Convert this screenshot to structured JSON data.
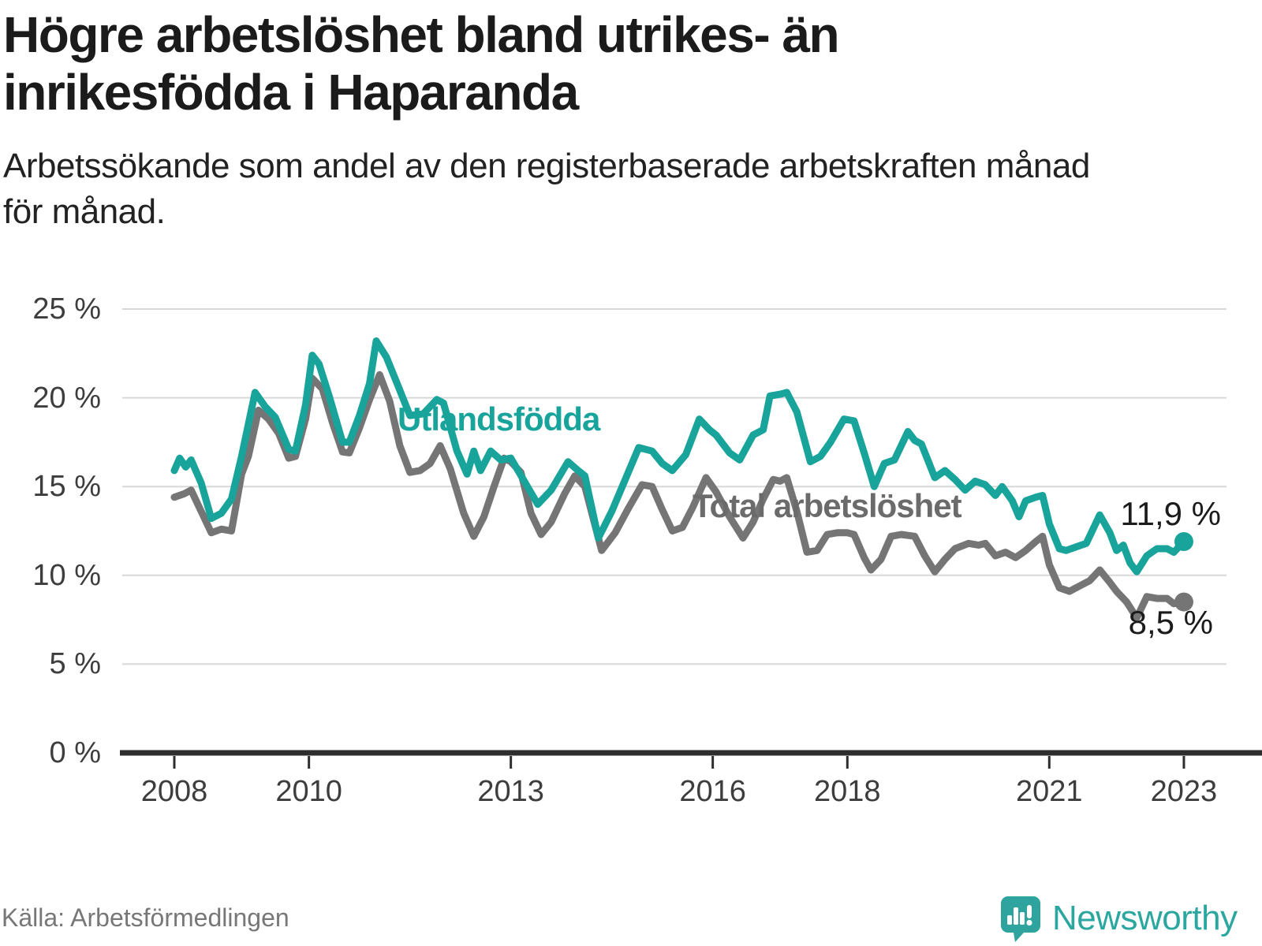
{
  "header": {
    "title_line1": "Högre arbetslöshet bland utrikes- än",
    "title_line2": "inrikesfödda i Haparanda",
    "subtitle_line1": "Arbetssökande som andel av den registerbaserade arbetskraften månad",
    "subtitle_line2": "för månad."
  },
  "footer": {
    "source": "Källa: Arbetsförmedlingen",
    "brand": "Newsworthy"
  },
  "colors": {
    "teal": "#18A39B",
    "gray": "#757575",
    "axis": "#2E2E2E",
    "grid": "#D8D8D8",
    "logo_teal": "#2FA39E"
  },
  "chart_data": {
    "type": "line",
    "title": "Högre arbetslöshet bland utrikes- än inrikesfödda i Haparanda",
    "subtitle": "Arbetssökande som andel av den registerbaserade arbetskraften månad för månad.",
    "xlabel": "",
    "ylabel": "",
    "ylim": [
      0,
      25
    ],
    "xlim": [
      2007.2,
      2024.2
    ],
    "grid": "horizontal",
    "legend_position": "inline-annotations",
    "y_ticks": [
      0,
      5,
      10,
      15,
      20,
      25
    ],
    "y_suffix": " %",
    "x_ticks": [
      2008,
      2010,
      2013,
      2016,
      2018,
      2021,
      2023
    ],
    "series": [
      {
        "name": "Total arbetslöshet",
        "color": "#757575",
        "end_label": "8,5 %",
        "end_value": 8.5,
        "points": [
          [
            2008.0,
            14.4
          ],
          [
            2008.15,
            14.6
          ],
          [
            2008.25,
            14.8
          ],
          [
            2008.4,
            13.6
          ],
          [
            2008.55,
            12.4
          ],
          [
            2008.7,
            12.6
          ],
          [
            2008.85,
            12.5
          ],
          [
            2009.0,
            15.7
          ],
          [
            2009.1,
            16.7
          ],
          [
            2009.25,
            19.3
          ],
          [
            2009.4,
            18.8
          ],
          [
            2009.55,
            18.0
          ],
          [
            2009.7,
            16.6
          ],
          [
            2009.8,
            16.7
          ],
          [
            2009.95,
            18.8
          ],
          [
            2010.05,
            21.1
          ],
          [
            2010.2,
            20.5
          ],
          [
            2010.35,
            18.6
          ],
          [
            2010.5,
            16.95
          ],
          [
            2010.6,
            16.9
          ],
          [
            2010.75,
            18.3
          ],
          [
            2010.9,
            19.9
          ],
          [
            2011.05,
            21.3
          ],
          [
            2011.2,
            19.8
          ],
          [
            2011.35,
            17.3
          ],
          [
            2011.5,
            15.8
          ],
          [
            2011.65,
            15.9
          ],
          [
            2011.8,
            16.3
          ],
          [
            2011.95,
            17.3
          ],
          [
            2012.1,
            16.0
          ],
          [
            2012.3,
            13.5
          ],
          [
            2012.45,
            12.2
          ],
          [
            2012.6,
            13.3
          ],
          [
            2012.75,
            15.0
          ],
          [
            2012.9,
            16.6
          ],
          [
            2013.0,
            16.4
          ],
          [
            2013.15,
            15.8
          ],
          [
            2013.3,
            13.5
          ],
          [
            2013.45,
            12.3
          ],
          [
            2013.6,
            13.0
          ],
          [
            2013.8,
            14.6
          ],
          [
            2013.95,
            15.6
          ],
          [
            2014.1,
            15.0
          ],
          [
            2014.35,
            11.4
          ],
          [
            2014.55,
            12.4
          ],
          [
            2014.75,
            13.8
          ],
          [
            2014.95,
            15.1
          ],
          [
            2015.1,
            15.0
          ],
          [
            2015.25,
            13.7
          ],
          [
            2015.4,
            12.5
          ],
          [
            2015.55,
            12.7
          ],
          [
            2015.7,
            13.8
          ],
          [
            2015.9,
            15.5
          ],
          [
            2016.05,
            14.7
          ],
          [
            2016.25,
            13.3
          ],
          [
            2016.45,
            12.1
          ],
          [
            2016.6,
            13.0
          ],
          [
            2016.75,
            14.3
          ],
          [
            2016.9,
            15.4
          ],
          [
            2017.0,
            15.3
          ],
          [
            2017.1,
            15.5
          ],
          [
            2017.25,
            13.6
          ],
          [
            2017.4,
            11.3
          ],
          [
            2017.55,
            11.4
          ],
          [
            2017.7,
            12.3
          ],
          [
            2017.85,
            12.4
          ],
          [
            2018.0,
            12.4
          ],
          [
            2018.1,
            12.3
          ],
          [
            2018.25,
            11.0
          ],
          [
            2018.35,
            10.3
          ],
          [
            2018.5,
            10.9
          ],
          [
            2018.65,
            12.2
          ],
          [
            2018.8,
            12.3
          ],
          [
            2019.0,
            12.2
          ],
          [
            2019.15,
            11.1
          ],
          [
            2019.3,
            10.2
          ],
          [
            2019.45,
            10.9
          ],
          [
            2019.6,
            11.5
          ],
          [
            2019.8,
            11.8
          ],
          [
            2019.95,
            11.7
          ],
          [
            2020.05,
            11.8
          ],
          [
            2020.2,
            11.1
          ],
          [
            2020.35,
            11.3
          ],
          [
            2020.5,
            11.0
          ],
          [
            2020.65,
            11.4
          ],
          [
            2020.8,
            11.9
          ],
          [
            2020.9,
            12.2
          ],
          [
            2021.0,
            10.6
          ],
          [
            2021.15,
            9.3
          ],
          [
            2021.3,
            9.1
          ],
          [
            2021.45,
            9.4
          ],
          [
            2021.6,
            9.7
          ],
          [
            2021.75,
            10.3
          ],
          [
            2021.9,
            9.6
          ],
          [
            2022.0,
            9.1
          ],
          [
            2022.15,
            8.5
          ],
          [
            2022.3,
            7.6
          ],
          [
            2022.45,
            8.8
          ],
          [
            2022.6,
            8.7
          ],
          [
            2022.75,
            8.7
          ],
          [
            2022.85,
            8.4
          ],
          [
            2023.0,
            8.5
          ]
        ]
      },
      {
        "name": "Utlandsfödda",
        "color": "#18A39B",
        "end_label": "11,9 %",
        "end_value": 11.9,
        "points": [
          [
            2008.0,
            15.9
          ],
          [
            2008.08,
            16.6
          ],
          [
            2008.17,
            16.1
          ],
          [
            2008.25,
            16.5
          ],
          [
            2008.4,
            15.2
          ],
          [
            2008.55,
            13.2
          ],
          [
            2008.7,
            13.5
          ],
          [
            2008.85,
            14.3
          ],
          [
            2009.0,
            16.7
          ],
          [
            2009.2,
            20.3
          ],
          [
            2009.35,
            19.5
          ],
          [
            2009.5,
            18.9
          ],
          [
            2009.7,
            17.1
          ],
          [
            2009.8,
            17.0
          ],
          [
            2009.95,
            19.6
          ],
          [
            2010.05,
            22.4
          ],
          [
            2010.15,
            21.9
          ],
          [
            2010.3,
            20.1
          ],
          [
            2010.5,
            17.5
          ],
          [
            2010.6,
            17.5
          ],
          [
            2010.75,
            19.0
          ],
          [
            2010.9,
            20.8
          ],
          [
            2011.0,
            23.2
          ],
          [
            2011.15,
            22.3
          ],
          [
            2011.3,
            20.9
          ],
          [
            2011.5,
            19.0
          ],
          [
            2011.7,
            19.1
          ],
          [
            2011.9,
            19.9
          ],
          [
            2012.0,
            19.7
          ],
          [
            2012.2,
            17.0
          ],
          [
            2012.35,
            15.7
          ],
          [
            2012.45,
            17.0
          ],
          [
            2012.55,
            15.9
          ],
          [
            2012.7,
            17.0
          ],
          [
            2012.85,
            16.5
          ],
          [
            2013.0,
            16.6
          ],
          [
            2013.2,
            15.3
          ],
          [
            2013.4,
            14.0
          ],
          [
            2013.6,
            14.8
          ],
          [
            2013.85,
            16.4
          ],
          [
            2014.0,
            15.9
          ],
          [
            2014.1,
            15.6
          ],
          [
            2014.3,
            12.1
          ],
          [
            2014.5,
            13.6
          ],
          [
            2014.7,
            15.4
          ],
          [
            2014.9,
            17.2
          ],
          [
            2015.1,
            17.0
          ],
          [
            2015.25,
            16.3
          ],
          [
            2015.4,
            15.9
          ],
          [
            2015.6,
            16.8
          ],
          [
            2015.8,
            18.8
          ],
          [
            2015.95,
            18.2
          ],
          [
            2016.05,
            17.9
          ],
          [
            2016.25,
            16.9
          ],
          [
            2016.4,
            16.5
          ],
          [
            2016.6,
            17.9
          ],
          [
            2016.75,
            18.2
          ],
          [
            2016.85,
            20.1
          ],
          [
            2017.0,
            20.2
          ],
          [
            2017.1,
            20.3
          ],
          [
            2017.25,
            19.2
          ],
          [
            2017.45,
            16.4
          ],
          [
            2017.6,
            16.7
          ],
          [
            2017.75,
            17.5
          ],
          [
            2017.95,
            18.8
          ],
          [
            2018.1,
            18.7
          ],
          [
            2018.25,
            16.9
          ],
          [
            2018.4,
            15.0
          ],
          [
            2018.55,
            16.3
          ],
          [
            2018.7,
            16.5
          ],
          [
            2018.9,
            18.1
          ],
          [
            2019.0,
            17.6
          ],
          [
            2019.1,
            17.4
          ],
          [
            2019.3,
            15.5
          ],
          [
            2019.45,
            15.9
          ],
          [
            2019.6,
            15.4
          ],
          [
            2019.75,
            14.8
          ],
          [
            2019.9,
            15.3
          ],
          [
            2020.05,
            15.1
          ],
          [
            2020.2,
            14.5
          ],
          [
            2020.3,
            15.0
          ],
          [
            2020.45,
            14.2
          ],
          [
            2020.55,
            13.3
          ],
          [
            2020.65,
            14.2
          ],
          [
            2020.8,
            14.4
          ],
          [
            2020.9,
            14.5
          ],
          [
            2021.0,
            12.9
          ],
          [
            2021.15,
            11.5
          ],
          [
            2021.25,
            11.4
          ],
          [
            2021.4,
            11.6
          ],
          [
            2021.55,
            11.8
          ],
          [
            2021.75,
            13.4
          ],
          [
            2021.9,
            12.4
          ],
          [
            2022.0,
            11.4
          ],
          [
            2022.1,
            11.7
          ],
          [
            2022.2,
            10.7
          ],
          [
            2022.3,
            10.2
          ],
          [
            2022.45,
            11.1
          ],
          [
            2022.6,
            11.5
          ],
          [
            2022.75,
            11.5
          ],
          [
            2022.85,
            11.3
          ],
          [
            2023.0,
            11.9
          ]
        ]
      }
    ]
  }
}
